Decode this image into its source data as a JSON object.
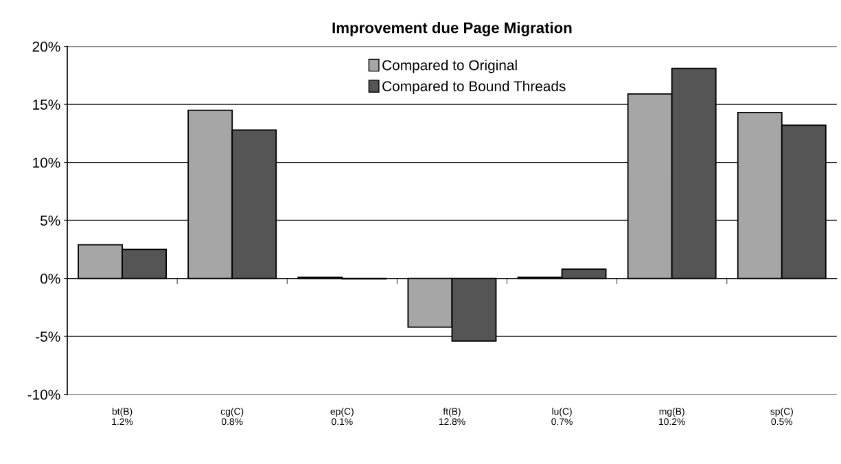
{
  "chart_data": {
    "type": "bar",
    "title": "Improvement due Page Migration",
    "categories": [
      "bt(B)\n1.2%",
      "cg(C)\n0.8%",
      "ep(C)\n0.1%",
      "ft(B)\n12.8%",
      "lu(C)\n0.7%",
      "mg(B)\n10.2%",
      "sp(C)\n0.5%"
    ],
    "series": [
      {
        "name": "Compared to Original",
        "color": "#a6a6a6",
        "values": [
          2.9,
          14.5,
          0.1,
          -4.2,
          0.1,
          15.9,
          14.3
        ]
      },
      {
        "name": "Compared to Bound Threads",
        "color": "#555555",
        "values": [
          2.5,
          12.8,
          -0.05,
          -5.4,
          0.8,
          18.1,
          13.2
        ]
      }
    ],
    "ylim": [
      -10,
      20
    ],
    "yticks": [
      {
        "value": -10,
        "label": "-10%"
      },
      {
        "value": -5,
        "label": "-5%"
      },
      {
        "value": 0,
        "label": "0%"
      },
      {
        "value": 5,
        "label": "5%"
      },
      {
        "value": 10,
        "label": "10%"
      },
      {
        "value": 15,
        "label": "15%"
      },
      {
        "value": 20,
        "label": "20%"
      }
    ],
    "grid": "y",
    "legend": "top"
  }
}
